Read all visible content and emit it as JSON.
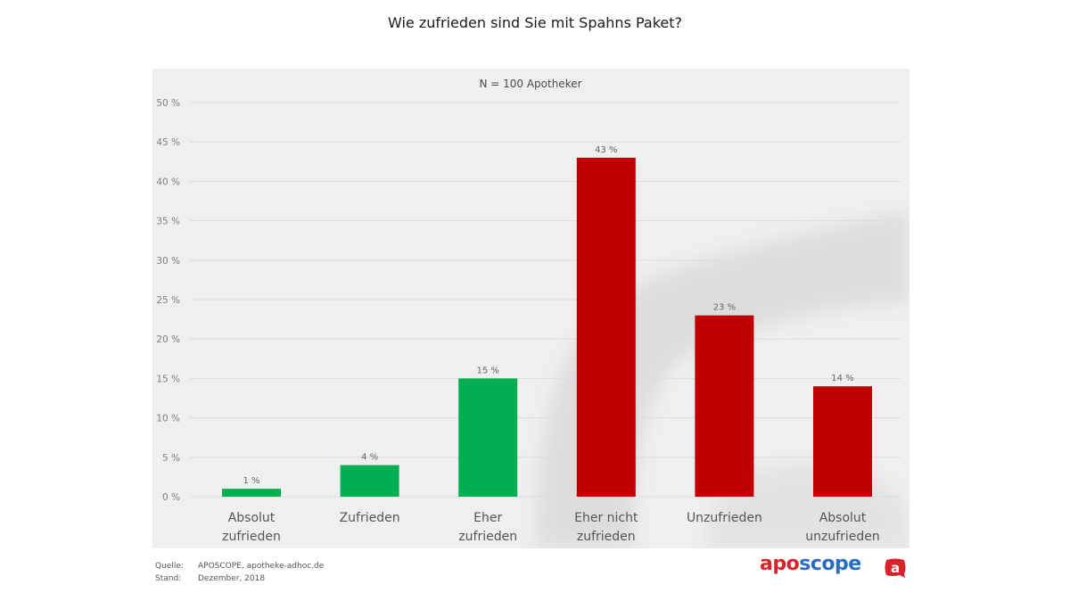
{
  "title": "Wie zufrieden sind Sie mit Spahns Paket?",
  "footer": {
    "source_key": "Quelle:",
    "source_value": "APOSCOPE, apotheke-adhoc.de",
    "date_key": "Stand:",
    "date_value": "Dezember, 2018"
  },
  "logo": {
    "part1": "apo",
    "part2": "scope",
    "mark_letter": "a",
    "colors": {
      "red": "#d8232a",
      "blue": "#2a6ebb"
    }
  },
  "colors": {
    "positive": "#00b050",
    "negative": "#c00000",
    "panel_bg": "#efeff0",
    "grid": "#dcdcdc"
  },
  "chart_data": {
    "type": "bar",
    "title": "Wie zufrieden sind Sie mit Spahns Paket?",
    "subtitle": "N = 100 Apotheker",
    "xlabel": "",
    "ylabel": "",
    "ylim": [
      0,
      50
    ],
    "ytick_step": 5,
    "ytick_suffix": " %",
    "grid": true,
    "legend": "none",
    "categories": [
      [
        "Absolut",
        "zufrieden"
      ],
      [
        "Zufrieden"
      ],
      [
        "Eher",
        "zufrieden"
      ],
      [
        "Eher nicht",
        "zufrieden"
      ],
      [
        "Unzufrieden"
      ],
      [
        "Absolut",
        "unzufrieden"
      ]
    ],
    "values": [
      1,
      4,
      15,
      43,
      23,
      14
    ],
    "data_labels": [
      "1 %",
      "4 %",
      "15 %",
      "43 %",
      "23 %",
      "14 %"
    ],
    "bar_colors": [
      "#00b050",
      "#00b050",
      "#00b050",
      "#c00000",
      "#c00000",
      "#c00000"
    ]
  }
}
